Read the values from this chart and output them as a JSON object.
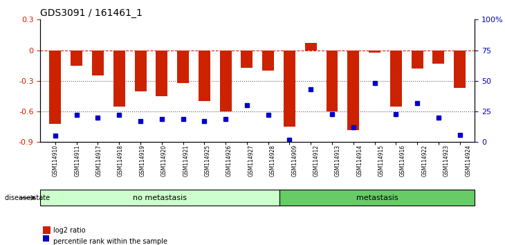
{
  "title": "GDS3091 / 161461_1",
  "samples": [
    "GSM114910",
    "GSM114911",
    "GSM114917",
    "GSM114918",
    "GSM114919",
    "GSM114920",
    "GSM114921",
    "GSM114925",
    "GSM114926",
    "GSM114927",
    "GSM114928",
    "GSM114909",
    "GSM114912",
    "GSM114913",
    "GSM114914",
    "GSM114915",
    "GSM114916",
    "GSM114922",
    "GSM114923",
    "GSM114924"
  ],
  "log2_ratio": [
    -0.72,
    -0.15,
    -0.25,
    -0.55,
    -0.4,
    -0.45,
    -0.32,
    -0.5,
    -0.6,
    -0.17,
    -0.2,
    -0.75,
    0.07,
    -0.6,
    -0.78,
    -0.02,
    -0.55,
    -0.18,
    -0.13,
    -0.37
  ],
  "percentile": [
    5,
    22,
    20,
    22,
    17,
    19,
    19,
    17,
    19,
    30,
    22,
    2,
    43,
    23,
    12,
    48,
    23,
    32,
    20,
    6
  ],
  "no_metastasis_count": 11,
  "metastasis_count": 9,
  "ylim_left": [
    -0.9,
    0.3
  ],
  "ylim_right": [
    0,
    100
  ],
  "yticks_left": [
    -0.9,
    -0.6,
    -0.3,
    0,
    0.3
  ],
  "yticks_right": [
    0,
    25,
    50,
    75,
    100
  ],
  "bar_color": "#cc2200",
  "square_color": "#0000cc",
  "no_metastasis_color": "#ccffcc",
  "metastasis_color": "#66cc66",
  "hline_color": "#cc2200",
  "dotted_color": "#555555",
  "axis_label_color_left": "#cc2200",
  "axis_label_color_right": "#0000cc"
}
